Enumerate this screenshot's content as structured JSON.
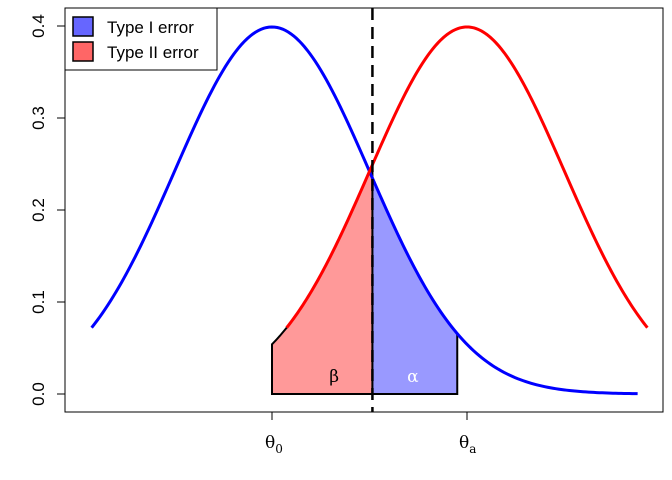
{
  "chart_data": {
    "type": "line",
    "xlabel": "",
    "ylabel": "",
    "ylim": [
      0.0,
      0.4
    ],
    "y_ticks": [
      "0.0",
      "0.1",
      "0.2",
      "0.3",
      "0.4"
    ],
    "x_ticks": [
      {
        "base": "θ",
        "sub": "0"
      },
      {
        "base": "θ",
        "sub": "a"
      }
    ],
    "grid": false,
    "legend_position": "top-left",
    "null_mean": 0,
    "alt_mean": 2,
    "sd": 1,
    "critical_value": 1.03,
    "x_range": [
      -1.85,
      3.75
    ],
    "series": [
      {
        "color": "#0000ff",
        "distribution": "normal",
        "mean": 0,
        "sd": 1
      },
      {
        "color": "#ff0000",
        "distribution": "normal",
        "mean": 2,
        "sd": 1
      }
    ],
    "shaded_regions": [
      {
        "label": "α",
        "from": 1.03,
        "to": 1.9,
        "under_mean": 0,
        "fill": "#9999ff",
        "label_color": "#ffffff"
      },
      {
        "label": "β",
        "from": 0.0,
        "to": 1.03,
        "under_mean": 2,
        "fill": "#ff9999",
        "label_color": "#000000"
      }
    ],
    "legend": [
      {
        "label": "Type I error",
        "color": "#6666ff"
      },
      {
        "label": "Type II error",
        "color": "#ff6666"
      }
    ]
  }
}
